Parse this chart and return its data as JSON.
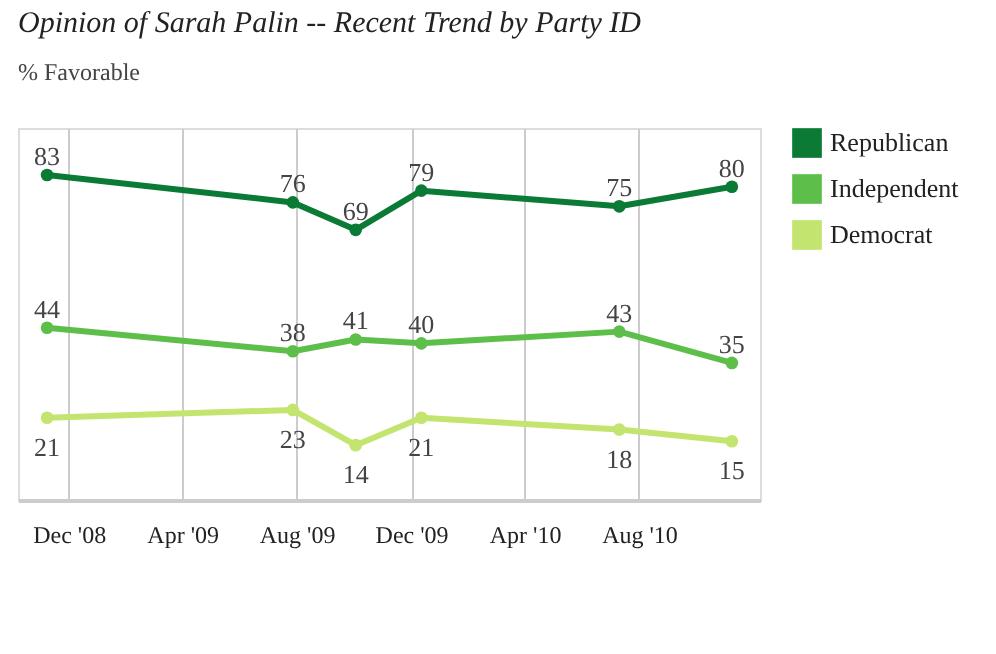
{
  "chart_data": {
    "type": "line",
    "title": "Opinion of Sarah Palin -- Recent Trend by Party ID",
    "subtitle": "% Favorable",
    "x": [
      "2008-11-08",
      "2009-07-28",
      "2009-10-03",
      "2009-12-12",
      "2010-07-11",
      "2010-11-08"
    ],
    "series": [
      {
        "name": "Republican",
        "color": "#0a7a35",
        "values": [
          83,
          76,
          69,
          79,
          75,
          80
        ]
      },
      {
        "name": "Independent",
        "color": "#5dbf4a",
        "values": [
          44,
          38,
          41,
          40,
          43,
          35
        ]
      },
      {
        "name": "Democrat",
        "color": "#c3e56f",
        "values": [
          21,
          23,
          14,
          21,
          18,
          15
        ]
      }
    ],
    "xlim": [
      "2008-10-08",
      "2010-12-08"
    ],
    "xticks": [
      {
        "value": "2008-12-01",
        "label": "Dec '08"
      },
      {
        "value": "2009-04-01",
        "label": "Apr '09"
      },
      {
        "value": "2009-08-01",
        "label": "Aug '09"
      },
      {
        "value": "2009-12-01",
        "label": "Dec '09"
      },
      {
        "value": "2010-04-01",
        "label": "Apr '10"
      },
      {
        "value": "2010-08-01",
        "label": "Aug '10"
      }
    ],
    "ylim": [
      0,
      95
    ],
    "tick_labels": "x",
    "grid": "x",
    "legend": "top right",
    "marker": "circle",
    "line_style": "solid",
    "data_labels": true
  }
}
